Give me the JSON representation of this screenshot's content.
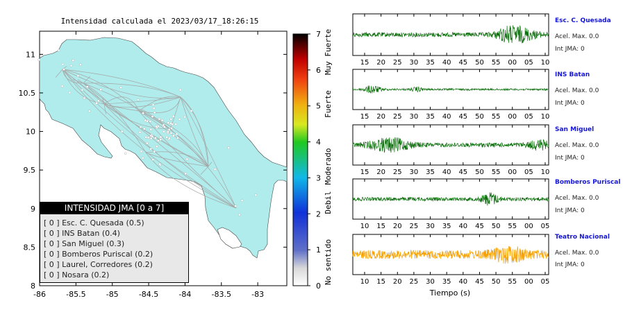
{
  "map": {
    "title": "Intensidad calculada el 2023/03/17_18:26:15",
    "x_ticks": [
      "-86",
      "-85.5",
      "-85",
      "-84.5",
      "-84",
      "-83.5",
      "-83"
    ],
    "y_ticks": [
      "11",
      "10.5",
      "10",
      "9.5",
      "9",
      "8.5",
      "8"
    ],
    "land_color": "#b0ecec",
    "road_color": "#a6a6a6",
    "station_color": "#ffffff"
  },
  "colorbar": {
    "ticks": [
      "0",
      "1",
      "2",
      "3",
      "4",
      "5",
      "6",
      "7"
    ],
    "labels": [
      "No sentido",
      "Debil",
      "Moderado",
      "Fuerte",
      "Muy Fuerte"
    ]
  },
  "legend": {
    "title": "INTENSIDAD JMA [0 a 7]",
    "items": [
      "[ 0 ]  Esc. C. Quesada (0.5)",
      "[ 0 ]  INS Batan (0.4)",
      "[ 0 ]  San Miguel (0.3)",
      "[ 0 ]  Bomberos Puriscal (0.2)",
      "[ 0 ]  Laurel, Corredores (0.2)",
      "[ 0 ]  Nosara (0.2)"
    ]
  },
  "chart_data": [
    {
      "type": "scatter",
      "title": "Intensidad calculada el 2023/03/17_18:26:15",
      "xlim": [
        -86,
        -82.6
      ],
      "ylim": [
        8,
        11.3
      ],
      "x_ticks": [
        -86,
        -85.5,
        -85,
        -84.5,
        -84,
        -83.5,
        -83
      ],
      "y_ticks": [
        8,
        8.5,
        9,
        9.5,
        10,
        10.5,
        11
      ],
      "colorbar": {
        "min": 0,
        "max": 7,
        "labels": [
          "No sentido",
          "Debil",
          "Moderado",
          "Fuerte",
          "Muy Fuerte"
        ]
      },
      "legend": {
        "title": "INTENSIDAD JMA [0 a 7]",
        "placement": "bottom-left"
      },
      "series": [
        {
          "name": "Esc. C. Quesada",
          "intensity": 0.5
        },
        {
          "name": "INS Batan",
          "intensity": 0.4
        },
        {
          "name": "San Miguel",
          "intensity": 0.3
        },
        {
          "name": "Bomberos Puriscal",
          "intensity": 0.2
        },
        {
          "name": "Laurel, Corredores",
          "intensity": 0.2
        },
        {
          "name": "Nosara",
          "intensity": 0.2
        }
      ]
    },
    {
      "type": "line",
      "xlabel": "Tiempo (s)",
      "traces": [
        {
          "station": "Esc. C. Quesada",
          "accel_label": "Acel. Max. 0.0",
          "jma_label": "Int JMA: 0",
          "color": "#0a6e0a",
          "amplitude": 0.35,
          "ticks": [
            "15",
            "20",
            "25",
            "30",
            "35",
            "40",
            "45",
            "50",
            "55",
            "00",
            "05",
            "10"
          ],
          "bursts": [
            {
              "at": 0.85,
              "width": 0.08,
              "gain": 2.8
            },
            {
              "at": 0.78,
              "width": 0.05,
              "gain": 1.6
            }
          ]
        },
        {
          "station": "INS Batan",
          "accel_label": "Acel. Max. 0.0",
          "jma_label": "Int JMA: 0",
          "color": "#0a6e0a",
          "amplitude": 0.15,
          "ticks": [
            "15",
            "20",
            "25",
            "30",
            "35",
            "40",
            "45",
            "50",
            "55",
            "00",
            "05",
            "10"
          ],
          "bursts": [
            {
              "at": 0.1,
              "width": 0.04,
              "gain": 4.0
            },
            {
              "at": 0.33,
              "width": 0.03,
              "gain": 2.2
            }
          ]
        },
        {
          "station": "San Miguel",
          "accel_label": "Acel. Max. 0.0",
          "jma_label": "Int JMA: 0",
          "color": "#0a6e0a",
          "amplitude": 0.35,
          "ticks": [
            "15",
            "20",
            "25",
            "30",
            "35",
            "40",
            "45",
            "50",
            "55",
            "00",
            "05",
            "10"
          ],
          "bursts": [
            {
              "at": 0.19,
              "width": 0.1,
              "gain": 2.8
            },
            {
              "at": 0.95,
              "width": 0.05,
              "gain": 1.8
            }
          ]
        },
        {
          "station": "Bomberos Puriscal",
          "accel_label": "Acel. Max. 0.0",
          "jma_label": "Int JMA: 0",
          "color": "#0a6e0a",
          "amplitude": 0.3,
          "ticks": [
            "10",
            "15",
            "20",
            "25",
            "30",
            "35",
            "40",
            "45",
            "50",
            "55",
            "00",
            "05"
          ],
          "bursts": [
            {
              "at": 0.7,
              "width": 0.04,
              "gain": 3.0
            }
          ]
        },
        {
          "station": "Teatro Nacional",
          "accel_label": "Acel. Max. 0.0",
          "jma_label": "Int JMA: 0",
          "color": "#f5a000",
          "amplitude": 0.7,
          "ticks": [
            "10",
            "15",
            "20",
            "25",
            "30",
            "35",
            "40",
            "45",
            "50",
            "55",
            "00",
            "05"
          ],
          "bursts": [
            {
              "at": 0.8,
              "width": 0.08,
              "gain": 1.3
            }
          ]
        }
      ]
    }
  ],
  "waveforms": {
    "xlabel": "Tiempo (s)",
    "traces": [
      {
        "station": "Esc. C. Quesada",
        "accel_label": "Acel. Max. 0.0",
        "jma_label": "Int JMA: 0"
      },
      {
        "station": "INS Batan",
        "accel_label": "Acel. Max. 0.0",
        "jma_label": "Int JMA: 0"
      },
      {
        "station": "San Miguel",
        "accel_label": "Acel. Max. 0.0",
        "jma_label": "Int JMA: 0"
      },
      {
        "station": "Bomberos Puriscal",
        "accel_label": "Acel. Max. 0.0",
        "jma_label": "Int JMA: 0"
      },
      {
        "station": "Teatro Nacional",
        "accel_label": "Acel. Max. 0.0",
        "jma_label": "Int JMA: 0"
      }
    ]
  }
}
